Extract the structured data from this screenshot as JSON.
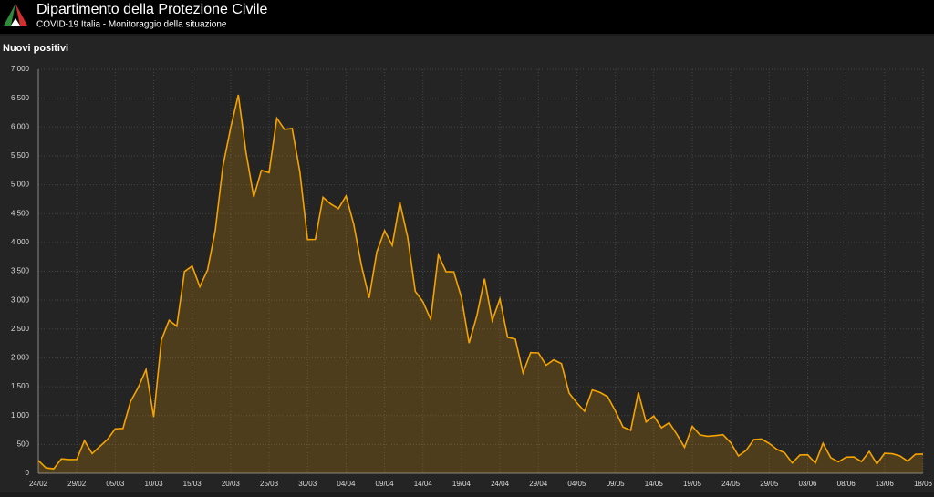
{
  "header": {
    "title": "Dipartimento della Protezione Civile",
    "subtitle": "COVID-19 Italia - Monitoraggio della situazione"
  },
  "chart_data": {
    "type": "area",
    "title": "Nuovi positivi",
    "color": "#f5a300",
    "grid": true,
    "categories": [
      "24/02",
      null,
      null,
      null,
      null,
      "29/02",
      null,
      null,
      null,
      null,
      "05/03",
      null,
      null,
      null,
      null,
      "10/03",
      null,
      null,
      null,
      null,
      "15/03",
      null,
      null,
      null,
      null,
      "20/03",
      null,
      null,
      null,
      null,
      "25/03",
      null,
      null,
      null,
      null,
      "30/03",
      null,
      null,
      null,
      null,
      "04/04",
      null,
      null,
      null,
      null,
      "09/04",
      null,
      null,
      null,
      null,
      "14/04",
      null,
      null,
      null,
      null,
      "19/04",
      null,
      null,
      null,
      null,
      "24/04",
      null,
      null,
      null,
      null,
      "29/04",
      null,
      null,
      null,
      null,
      "04/05",
      null,
      null,
      null,
      null,
      "09/05",
      null,
      null,
      null,
      null,
      "14/05",
      null,
      null,
      null,
      null,
      "19/05",
      null,
      null,
      null,
      null,
      "24/05",
      null,
      null,
      null,
      null,
      "29/05",
      null,
      null,
      null,
      null,
      "03/06",
      null,
      null,
      null,
      null,
      "08/06",
      null,
      null,
      null,
      null,
      "13/06",
      null,
      null,
      null,
      null,
      "18/06"
    ],
    "values": [
      221,
      93,
      78,
      250,
      238,
      240,
      566,
      342,
      466,
      587,
      769,
      778,
      1247,
      1492,
      1797,
      977,
      2313,
      2651,
      2547,
      3497,
      3590,
      3233,
      3526,
      4207,
      5322,
      5986,
      6557,
      5560,
      4789,
      5249,
      5210,
      6153,
      5959,
      5974,
      5217,
      4050,
      4053,
      4782,
      4668,
      4585,
      4805,
      4316,
      3599,
      3039,
      3836,
      4204,
      3951,
      4694,
      4092,
      3153,
      2972,
      2667,
      3786,
      3493,
      3491,
      3047,
      2256,
      2729,
      3370,
      2646,
      3021,
      2357,
      2324,
      1739,
      2091,
      2086,
      1872,
      1965,
      1900,
      1389,
      1221,
      1075,
      1444,
      1401,
      1327,
      1083,
      802,
      744,
      1402,
      888,
      992,
      789,
      875,
      675,
      451,
      813,
      665,
      642,
      652,
      669,
      531,
      300,
      397,
      584,
      593,
      516,
      416,
      355,
      178,
      318,
      321,
      177,
      518,
      270,
      197,
      280,
      283,
      202,
      379,
      163,
      346,
      338,
      301,
      210,
      329,
      333
    ],
    "ylim": [
      0,
      7000
    ],
    "yticks": [
      0,
      500,
      {
        "value": 1000,
        "label": "1.000"
      },
      {
        "value": 1500,
        "label": "1.500"
      },
      {
        "value": 2000,
        "label": "2.000"
      },
      {
        "value": 2500,
        "label": "2.500"
      },
      {
        "value": 3000,
        "label": "3.000"
      },
      {
        "value": 3500,
        "label": "3.500"
      },
      {
        "value": 4000,
        "label": "4.000"
      },
      {
        "value": 4500,
        "label": "4.500"
      },
      {
        "value": 5000,
        "label": "5.000"
      },
      {
        "value": 5500,
        "label": "5.500"
      },
      {
        "value": 6000,
        "label": "6.000"
      },
      {
        "value": 6500,
        "label": "6.500"
      },
      {
        "value": 7000,
        "label": "7.000"
      }
    ]
  }
}
